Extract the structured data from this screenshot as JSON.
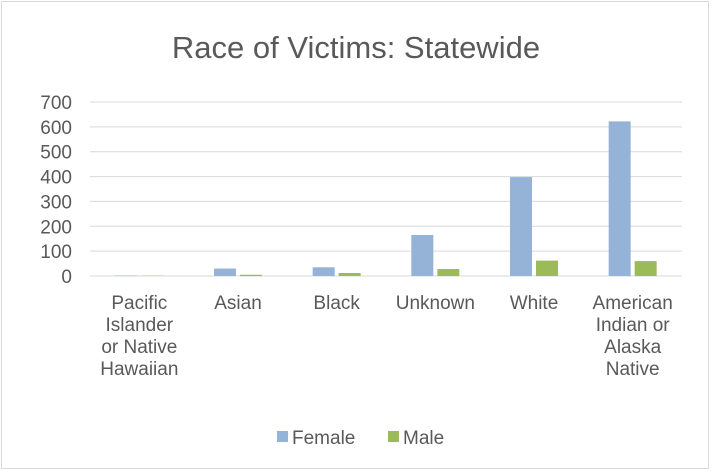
{
  "chart_data": {
    "type": "bar",
    "title": "Race of Victims: Statewide",
    "xlabel": "",
    "ylabel": "",
    "ylim": [
      0,
      700
    ],
    "yticks": [
      0,
      100,
      200,
      300,
      400,
      500,
      600,
      700
    ],
    "categories": [
      [
        "Pacific",
        "Islander",
        "or Native",
        "Hawaiian"
      ],
      [
        "Asian"
      ],
      [
        "Black"
      ],
      [
        "Unknown"
      ],
      [
        "White"
      ],
      [
        "American",
        "Indian or",
        "Alaska",
        "Native"
      ]
    ],
    "series": [
      {
        "name": "Female",
        "color": "#95b3d7",
        "values": [
          2,
          30,
          35,
          165,
          398,
          622
        ]
      },
      {
        "name": "Male",
        "color": "#9bbb59",
        "values": [
          1,
          5,
          12,
          28,
          62,
          60
        ]
      }
    ],
    "grid": true,
    "legend_position": "bottom"
  }
}
